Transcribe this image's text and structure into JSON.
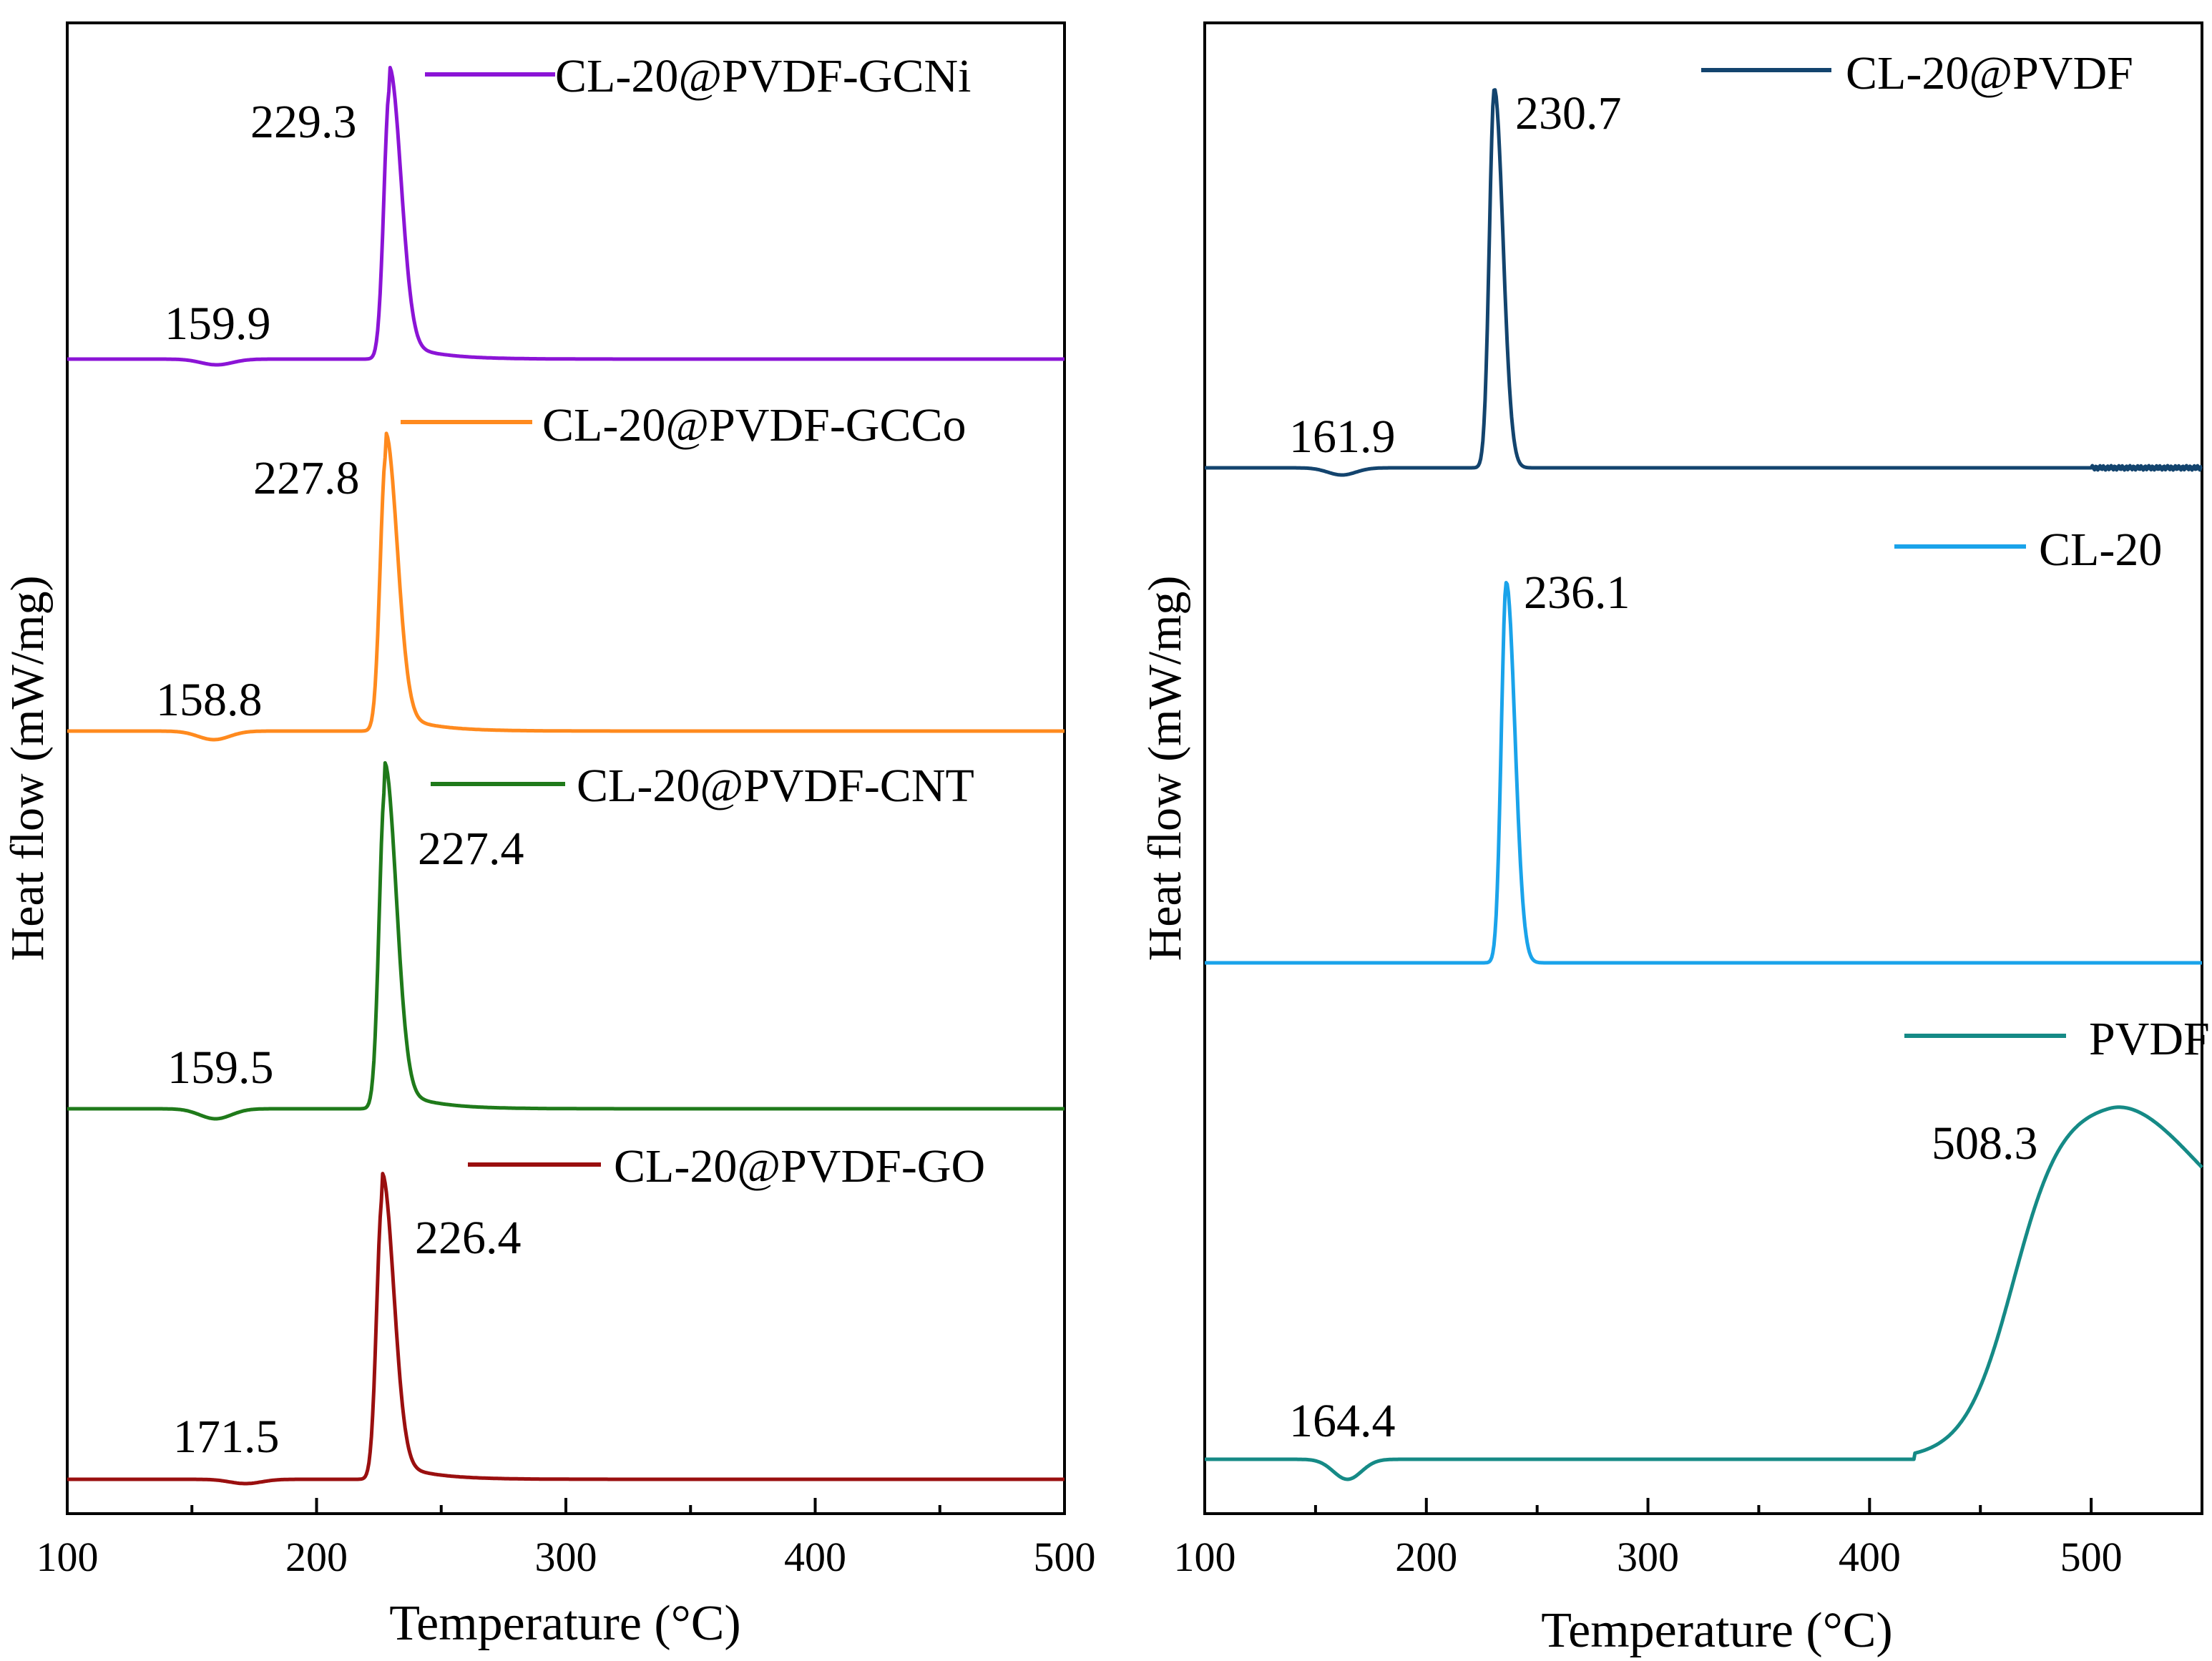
{
  "chart_data": [
    {
      "type": "line",
      "panel": "left",
      "xlabel": "Temperature (°C)",
      "ylabel": "Heat flow (mW/mg)",
      "xlim": [
        100,
        500
      ],
      "xticks": [
        100,
        200,
        300,
        400,
        500
      ],
      "series": [
        {
          "name": "CL-20@PVDF-GCNi",
          "color": "#8b14d6",
          "endo_label": "159.9",
          "endo_temp": 159.9,
          "exo_label": "229.3",
          "exo_temp": 229.3,
          "exo_height": 1.0
        },
        {
          "name": "CL-20@PVDF-GCCo",
          "color": "#ff8a1e",
          "endo_label": "158.8",
          "endo_temp": 158.8,
          "exo_label": "227.8",
          "exo_temp": 227.8,
          "exo_height": 1.0
        },
        {
          "name": "CL-20@PVDF-CNT",
          "color": "#1f7a1a",
          "endo_label": "159.5",
          "endo_temp": 159.5,
          "exo_label": "227.4",
          "exo_temp": 227.4,
          "exo_height": 1.0
        },
        {
          "name": "CL-20@PVDF-GO",
          "color": "#9a0f0f",
          "endo_label": "171.5",
          "endo_temp": 171.5,
          "exo_label": "226.4",
          "exo_temp": 226.4,
          "exo_height": 1.0
        }
      ]
    },
    {
      "type": "line",
      "panel": "right",
      "xlabel": "Temperature (°C)",
      "ylabel": "Heat flow (mW/mg)",
      "xlim": [
        100,
        550
      ],
      "xticks": [
        100,
        200,
        300,
        400,
        500
      ],
      "series": [
        {
          "name": "CL-20@PVDF",
          "color": "#13446e",
          "endo_label": "161.9",
          "endo_temp": 161.9,
          "exo_label": "230.7",
          "exo_temp": 230.7,
          "exo_height": 1.0
        },
        {
          "name": "CL-20",
          "color": "#1aa3ea",
          "endo_label": "",
          "endo_temp": null,
          "exo_label": "236.1",
          "exo_temp": 236.1,
          "exo_height": 1.0
        },
        {
          "name": "PVDF",
          "color": "#158a86",
          "endo_label": "164.4",
          "endo_temp": 164.4,
          "exo_label": "508.3",
          "exo_temp": 508.3,
          "exo_height": 1.0
        }
      ]
    }
  ]
}
